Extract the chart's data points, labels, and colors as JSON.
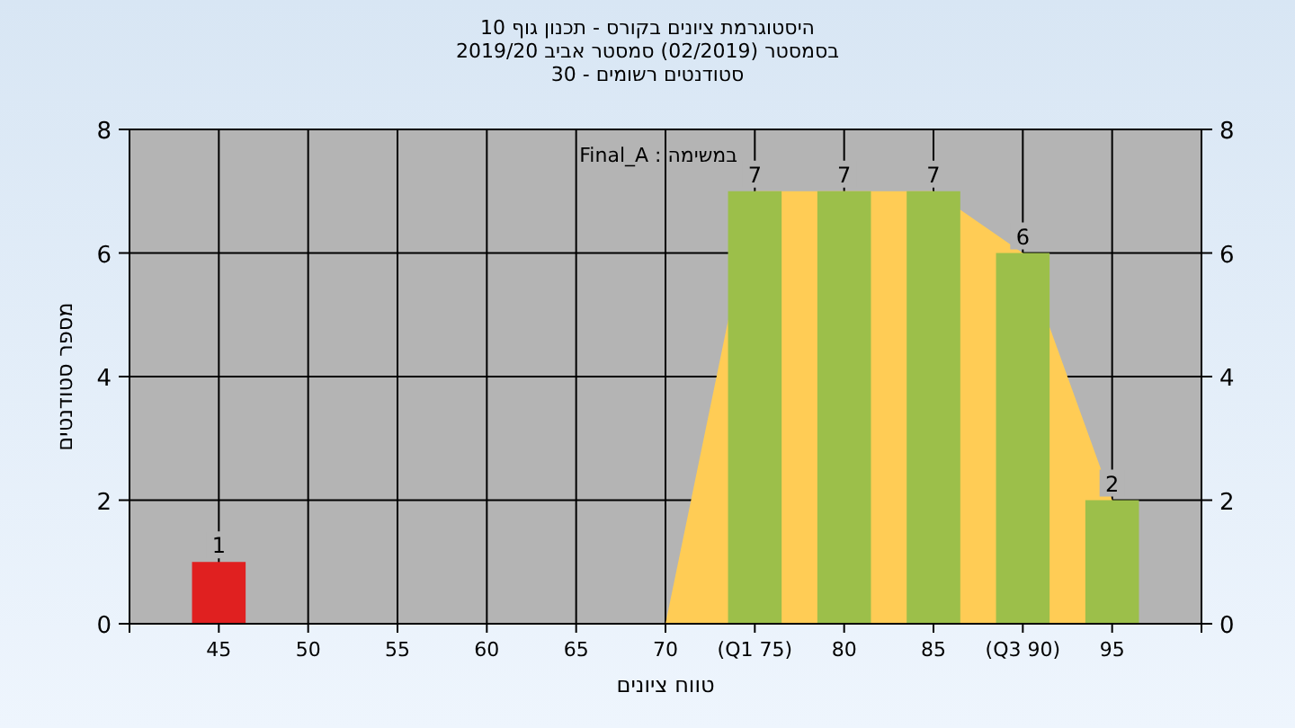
{
  "chart_data": {
    "type": "bar",
    "title": "היסטוגרמת ציונים בקורס - תכנון גוף 10",
    "subtitle": "בסמסטר  (02/2019)  סמסטר אביב 2019/20\nסטודנטים רשומים - 30",
    "xlabel": "טווח ציונים",
    "ylabel": "מספר סטודנטים",
    "annotations": [
      "במשימה : Final_A"
    ],
    "categories": [
      "45",
      "50",
      "55",
      "60",
      "65",
      "70",
      "(Q1 75)",
      "80",
      "85",
      "(Q3 90)",
      "95"
    ],
    "series": [
      {
        "type": "area",
        "color": "#ffcc55",
        "values": [
          null,
          null,
          null,
          null,
          null,
          0,
          7,
          7,
          7,
          6,
          2
        ]
      },
      {
        "colors": [
          "#e02020",
          "#9cbf4a",
          "#9cbf4a",
          "#9cbf4a",
          "#9cbf4a",
          "#9cbf4a",
          "#9cbf4a",
          "#9cbf4a",
          "#9cbf4a",
          "#9cbf4a",
          "#9cbf4a"
        ],
        "values": [
          1,
          0,
          0,
          0,
          0,
          0,
          7,
          7,
          7,
          6,
          2
        ],
        "value_labels": [
          "1",
          null,
          null,
          null,
          null,
          null,
          "7",
          "7",
          "7",
          "6",
          "2"
        ]
      }
    ],
    "ylim": [
      0,
      8
    ],
    "yticks": [
      0,
      2,
      4,
      6,
      8
    ],
    "y2lim": [
      0,
      8
    ],
    "y2ticks": [
      0,
      2,
      4,
      6,
      8
    ],
    "grid": true
  }
}
